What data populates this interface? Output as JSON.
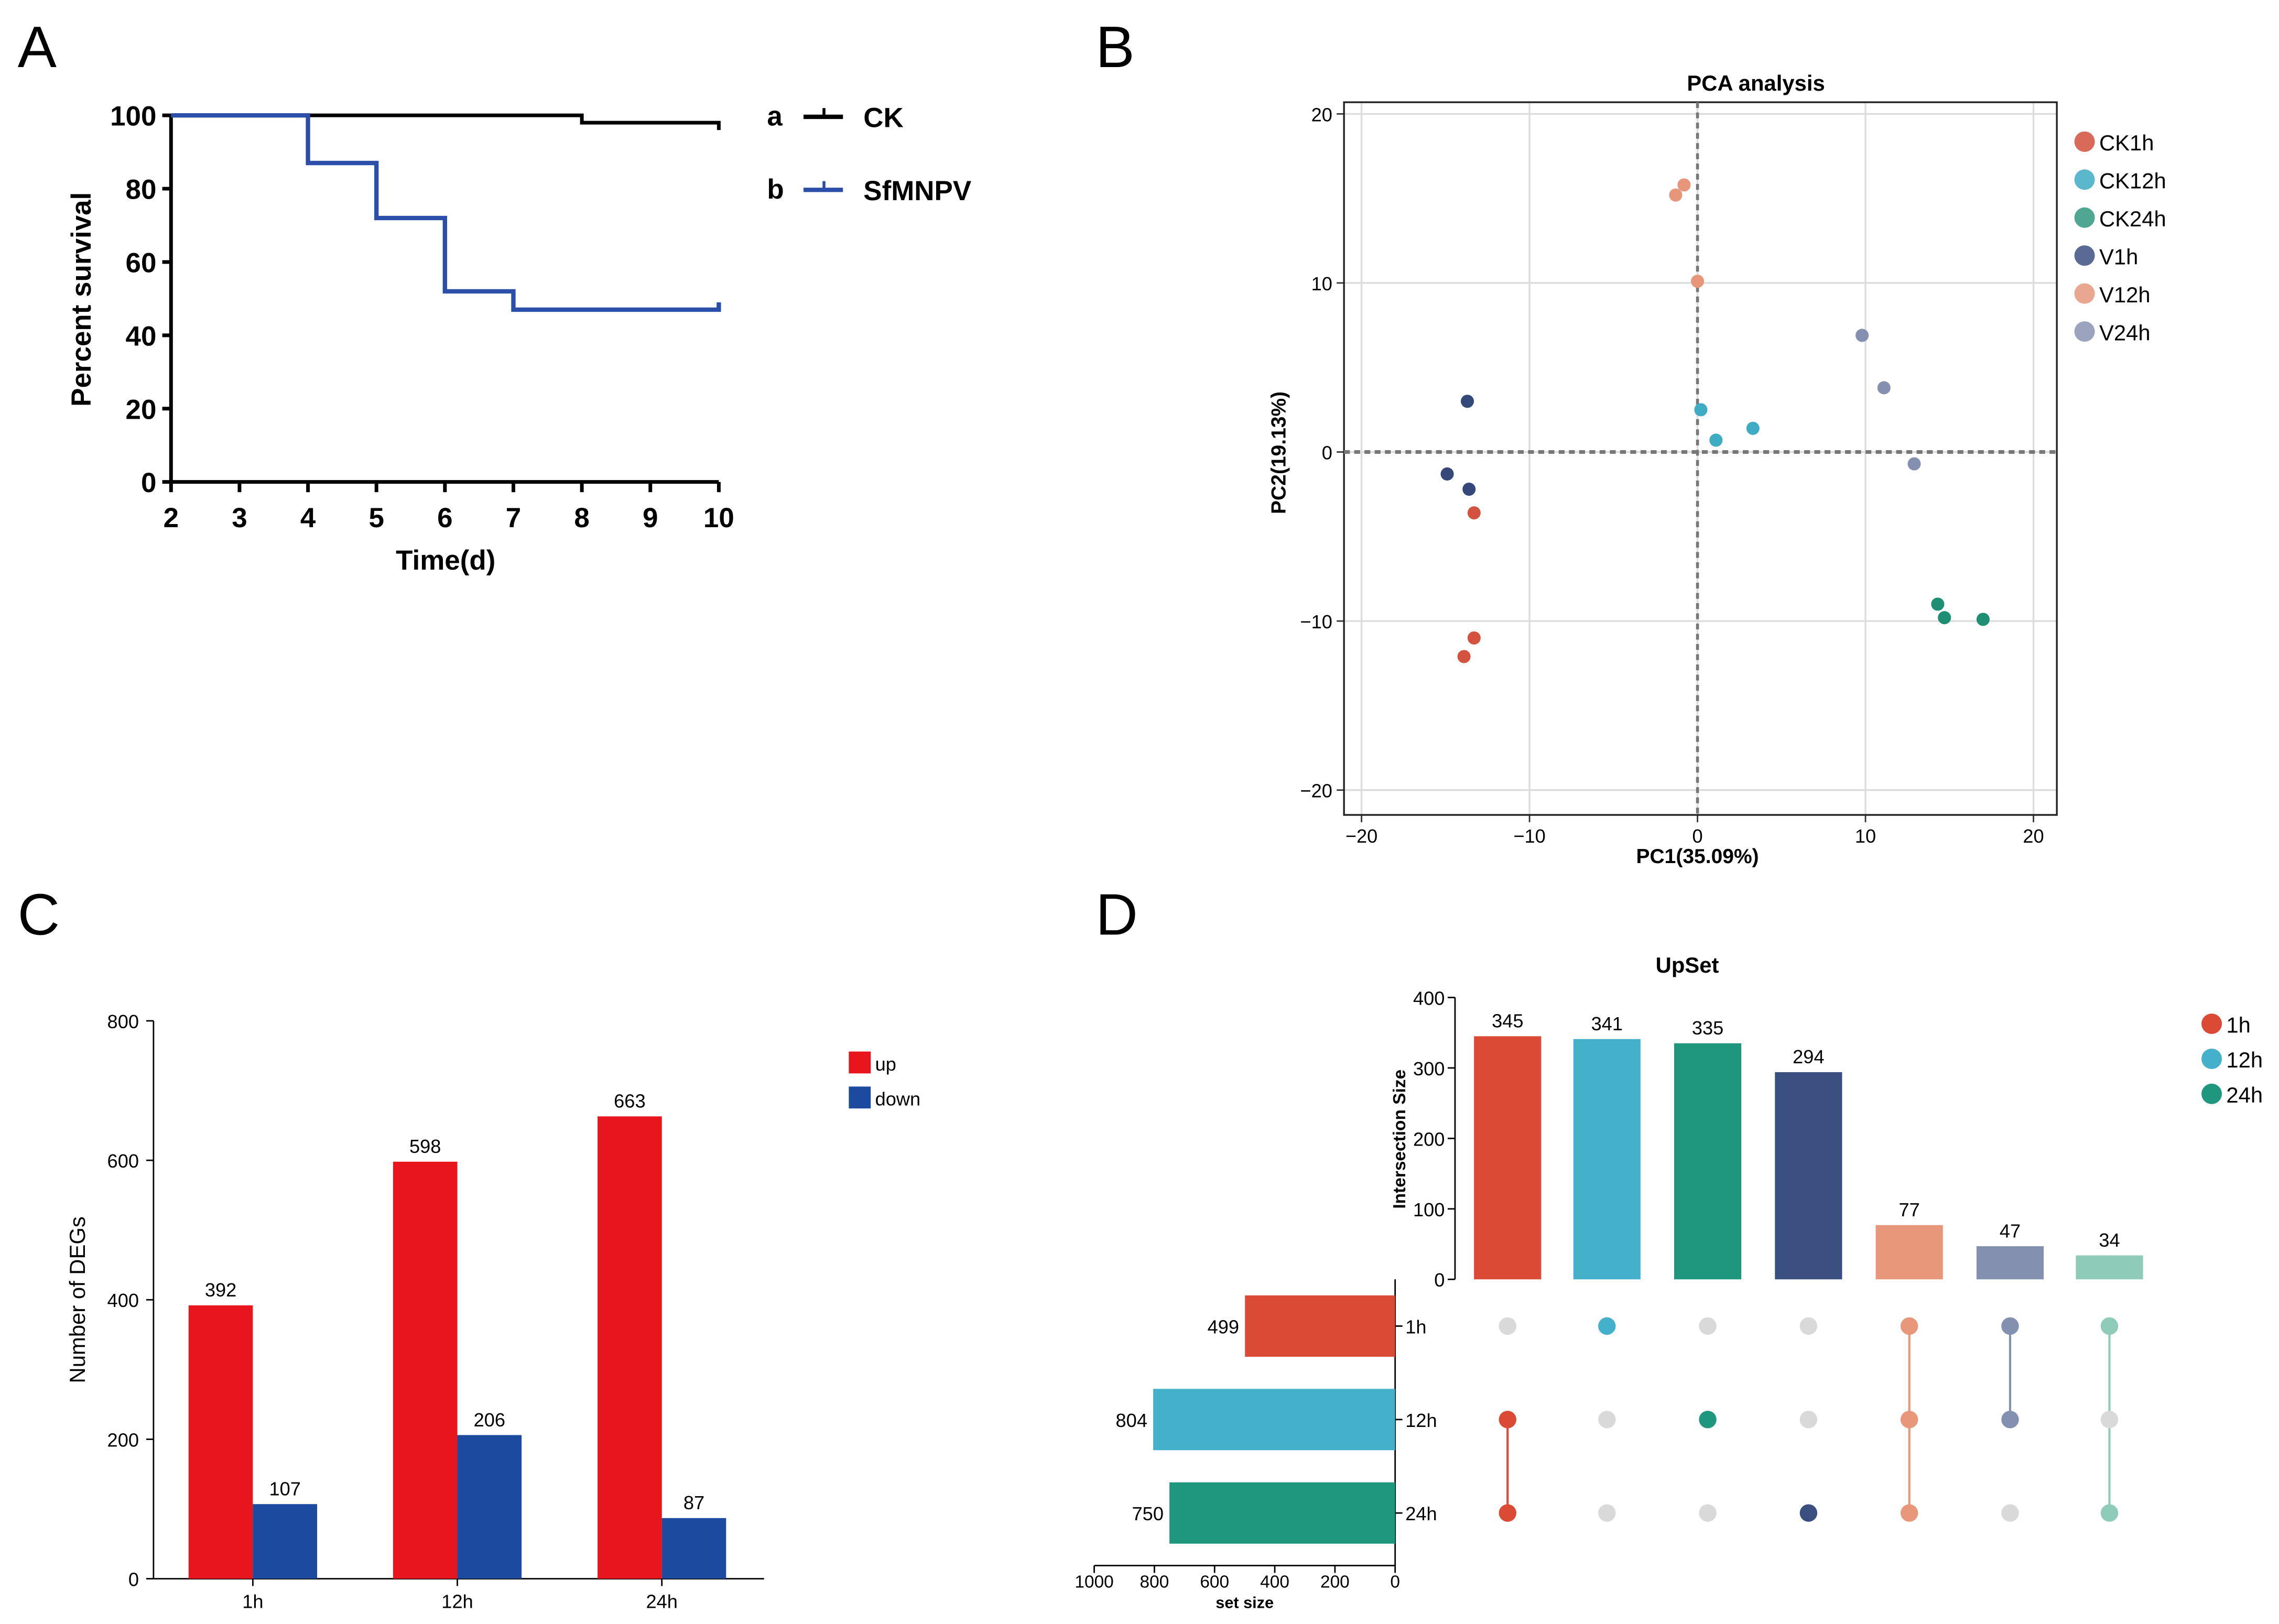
{
  "panel_labels": [
    "A",
    "B",
    "C",
    "D"
  ],
  "chart_data": [
    {
      "panel": "A",
      "type": "line",
      "subtype": "step",
      "xlabel": "Time(d)",
      "ylabel": "Percent survival",
      "xlim": [
        2,
        10
      ],
      "ylim": [
        0,
        100
      ],
      "xticks": [
        2,
        3,
        4,
        5,
        6,
        7,
        8,
        9,
        10
      ],
      "yticks": [
        0,
        20,
        40,
        60,
        80,
        100
      ],
      "grid": false,
      "legend_position": "right",
      "series": [
        {
          "name": "CK",
          "letter": "a",
          "color": "#000000",
          "x": [
            2,
            8,
            10
          ],
          "y": [
            100,
            98,
            98
          ]
        },
        {
          "name": "SfMNPV",
          "letter": "b",
          "color": "#2b4fa8",
          "x": [
            2,
            4,
            5,
            6,
            7,
            10
          ],
          "y": [
            100,
            87,
            72,
            52,
            47,
            47
          ]
        }
      ]
    },
    {
      "panel": "B",
      "type": "scatter",
      "title": "PCA analysis",
      "xlabel": "PC1(35.09%)",
      "ylabel": "PC2(19.13%)",
      "xlim": [
        -21,
        21.5
      ],
      "ylim": [
        -21,
        20
      ],
      "xticks": [
        -20,
        -10,
        0,
        10,
        20
      ],
      "yticks": [
        -20,
        -10,
        0,
        10,
        20
      ],
      "grid": true,
      "legend_position": "right",
      "series": [
        {
          "name": "CK1h",
          "color": "#d4533f",
          "points": [
            [
              -13.3,
              -3.6
            ],
            [
              -13.3,
              -11.0
            ],
            [
              -13.9,
              -12.1
            ]
          ]
        },
        {
          "name": "CK12h",
          "color": "#3fabc4",
          "points": [
            [
              0.2,
              2.5
            ],
            [
              1.1,
              0.7
            ],
            [
              3.3,
              1.4
            ]
          ]
        },
        {
          "name": "CK24h",
          "color": "#1f8f74",
          "points": [
            [
              14.3,
              -9.0
            ],
            [
              14.7,
              -9.8
            ],
            [
              17.0,
              -9.9
            ]
          ]
        },
        {
          "name": "V1h",
          "color": "#34487a",
          "points": [
            [
              -13.7,
              3.0
            ],
            [
              -14.9,
              -1.3
            ],
            [
              -13.6,
              -2.2
            ]
          ]
        },
        {
          "name": "V12h",
          "color": "#e8967a",
          "points": [
            [
              -1.3,
              15.2
            ],
            [
              -0.8,
              15.8
            ],
            [
              0.0,
              10.1
            ]
          ]
        },
        {
          "name": "V24h",
          "color": "#8590b0",
          "points": [
            [
              9.8,
              6.9
            ],
            [
              11.1,
              3.8
            ],
            [
              12.9,
              -0.7
            ]
          ]
        }
      ],
      "legend_colors": [
        "#d96a5a",
        "#5bb8cc",
        "#4fa791",
        "#5a6a95",
        "#e9a690",
        "#9ca3bf"
      ]
    },
    {
      "panel": "C",
      "type": "bar",
      "xlabel": "",
      "ylabel": "Number of DEGs",
      "categories": [
        "1h",
        "12h",
        "24h"
      ],
      "ylim": [
        0,
        800
      ],
      "yticks": [
        0,
        200,
        400,
        600,
        800
      ],
      "grid": false,
      "legend_position": "top-right",
      "series": [
        {
          "name": "up",
          "color": "#e8161c",
          "values": [
            392,
            598,
            663
          ]
        },
        {
          "name": "down",
          "color": "#1b4a9e",
          "values": [
            107,
            206,
            87
          ]
        }
      ]
    },
    {
      "panel": "D",
      "type": "bar",
      "subtype": "upset",
      "title": "UpSet",
      "ylabel": "Intersection Size",
      "ylim": [
        0,
        400
      ],
      "yticks": [
        0,
        100,
        200,
        300,
        400
      ],
      "intersections": [
        {
          "value": 345,
          "color": "#da4a34",
          "sets": [
            "12h",
            "24h"
          ]
        },
        {
          "value": 341,
          "color": "#44b0ca",
          "sets": [
            "1h"
          ]
        },
        {
          "value": 335,
          "color": "#1f967e",
          "sets": [
            "12h"
          ]
        },
        {
          "value": 294,
          "color": "#3a4f7f",
          "sets": [
            "24h"
          ]
        },
        {
          "value": 77,
          "color": "#e8977a",
          "sets": [
            "1h",
            "12h",
            "24h"
          ]
        },
        {
          "value": 47,
          "color": "#8390b0",
          "sets": [
            "1h",
            "12h"
          ]
        },
        {
          "value": 34,
          "color": "#8ecbb9",
          "sets": [
            "1h",
            "24h"
          ]
        }
      ],
      "set_size_label": "set size",
      "set_size_lim": [
        0,
        1000
      ],
      "set_size_ticks": [
        1000,
        800,
        600,
        400,
        200,
        0
      ],
      "sets": [
        {
          "name": "1h",
          "size": 499,
          "color": "#da4a34"
        },
        {
          "name": "12h",
          "size": 804,
          "color": "#44b0ca"
        },
        {
          "name": "24h",
          "size": 750,
          "color": "#1f967e"
        }
      ],
      "inactive_dot_color": "#d9d9d9",
      "legend_position": "top-right"
    }
  ]
}
